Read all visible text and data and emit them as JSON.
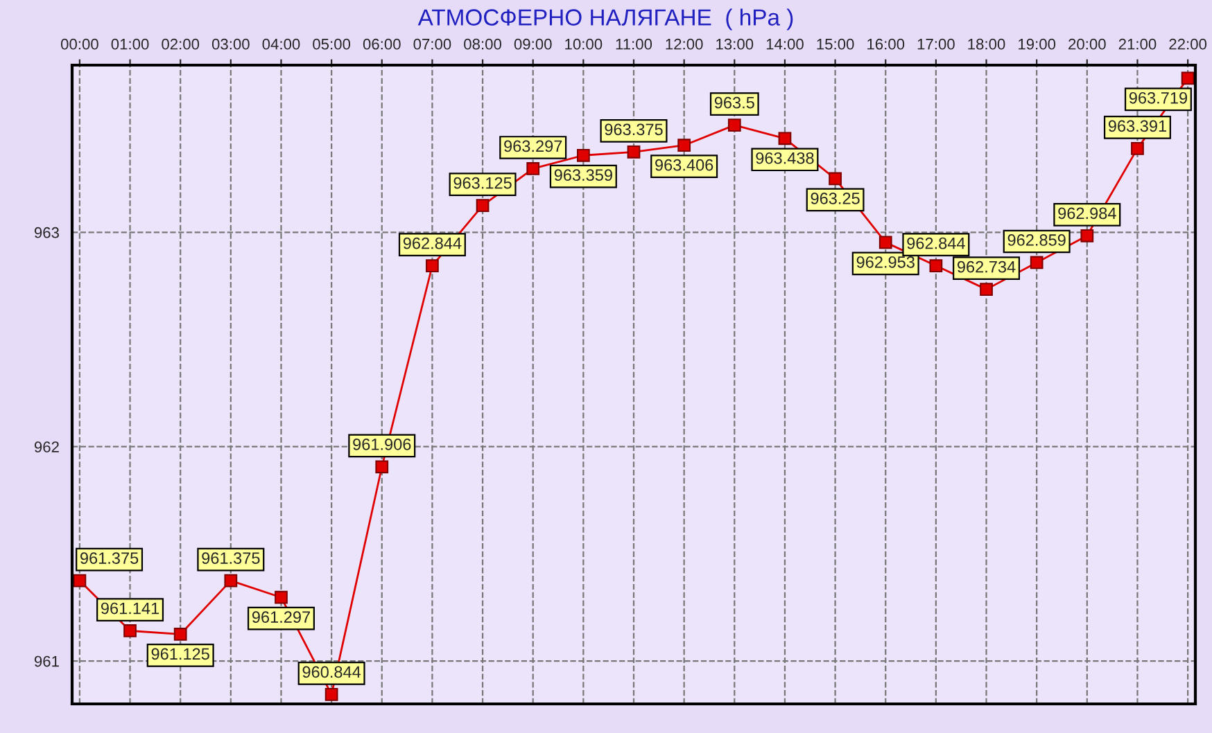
{
  "chart_data": {
    "type": "line",
    "title": "АТМОСФЕРНО НАЛЯГАНЕ  ( hPa )",
    "categories": [
      "00:00",
      "01:00",
      "02:00",
      "03:00",
      "04:00",
      "05:00",
      "06:00",
      "07:00",
      "08:00",
      "09:00",
      "10:00",
      "11:00",
      "12:00",
      "13:00",
      "14:00",
      "15:00",
      "16:00",
      "17:00",
      "18:00",
      "19:00",
      "20:00",
      "21:00",
      "22:00"
    ],
    "series": [
      {
        "color": "#e00000",
        "values": [
          961.375,
          961.141,
          961.125,
          961.375,
          961.297,
          960.844,
          961.906,
          962.844,
          963.125,
          963.297,
          963.359,
          963.375,
          963.406,
          963.5,
          963.438,
          963.25,
          962.953,
          962.844,
          962.734,
          962.859,
          962.984,
          963.391,
          963.719
        ]
      }
    ],
    "ylim": [
      960.8,
      963.78
    ],
    "yticks": [
      961,
      962,
      963
    ],
    "grid": true,
    "marker": "square",
    "line_style": "solid",
    "data_labels": true
  }
}
